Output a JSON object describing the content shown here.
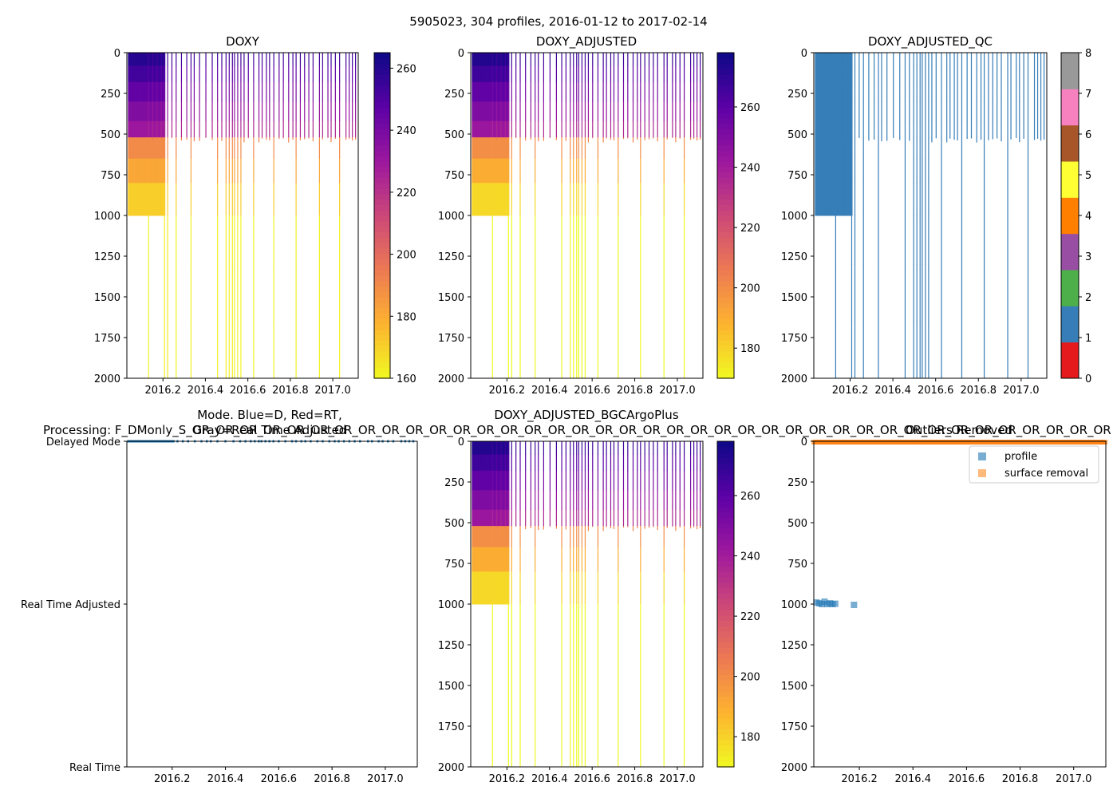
{
  "suptitle": "5905023, 304 profiles, 2016-01-12 to 2017-02-14",
  "colors": {
    "profile": "#1f77b4",
    "surface_removal": "#ff7f0e",
    "qc": [
      "#e41a1c",
      "#377eb8",
      "#4daf4a",
      "#984ea3",
      "#ff7f00",
      "#ffff33",
      "#a65628",
      "#f781bf",
      "#999999"
    ],
    "plasma": [
      "#f0f921",
      "#fdb42f",
      "#ed7953",
      "#cc4778",
      "#9c179e",
      "#5c01a6",
      "#0d0887"
    ]
  },
  "chart_data": [
    {
      "id": "doxy",
      "type": "heatmap",
      "title": "DOXY",
      "xlim": [
        2016.03,
        2017.12
      ],
      "xticks": [
        "2016.2",
        "2016.4",
        "2016.6",
        "2016.8",
        "2017.0"
      ],
      "xtick_values": [
        2016.2,
        2016.4,
        2016.6,
        2016.8,
        2017.0
      ],
      "ylim": [
        2000,
        0
      ],
      "yticks": [
        "0",
        "250",
        "500",
        "750",
        "1000",
        "1250",
        "1500",
        "1750",
        "2000"
      ],
      "ytick_values": [
        0,
        250,
        500,
        750,
        1000,
        1250,
        1500,
        1750,
        2000
      ],
      "colorbar": {
        "min": 160,
        "max": 265,
        "ticks": [
          "160",
          "180",
          "200",
          "220",
          "240",
          "260"
        ],
        "tick_values": [
          160,
          180,
          200,
          220,
          240,
          260
        ]
      },
      "value_range_shallow": [
        228,
        262
      ],
      "value_range_deep": [
        165,
        195
      ]
    },
    {
      "id": "doxy-adjusted",
      "type": "heatmap",
      "title": "DOXY_ADJUSTED",
      "xlim": [
        2016.03,
        2017.12
      ],
      "xticks": [
        "2016.2",
        "2016.4",
        "2016.6",
        "2016.8",
        "2017.0"
      ],
      "xtick_values": [
        2016.2,
        2016.4,
        2016.6,
        2016.8,
        2017.0
      ],
      "ylim": [
        2000,
        0
      ],
      "yticks": [
        "0",
        "250",
        "500",
        "750",
        "1000",
        "1250",
        "1500",
        "1750",
        "2000"
      ],
      "ytick_values": [
        0,
        250,
        500,
        750,
        1000,
        1250,
        1500,
        1750,
        2000
      ],
      "colorbar": {
        "min": 170,
        "max": 278,
        "ticks": [
          "180",
          "200",
          "220",
          "240",
          "260"
        ],
        "tick_values": [
          180,
          200,
          220,
          240,
          260
        ]
      },
      "value_range_shallow": [
        240,
        276
      ],
      "value_range_deep": [
        172,
        205
      ]
    },
    {
      "id": "doxy-adjusted-qc",
      "type": "heatmap",
      "title": "DOXY_ADJUSTED_QC",
      "xlim": [
        2016.03,
        2017.12
      ],
      "xticks": [
        "2016.2",
        "2016.4",
        "2016.6",
        "2016.8",
        "2017.0"
      ],
      "xtick_values": [
        2016.2,
        2016.4,
        2016.6,
        2016.8,
        2017.0
      ],
      "ylim": [
        2000,
        0
      ],
      "yticks": [
        "0",
        "250",
        "500",
        "750",
        "1000",
        "1250",
        "1500",
        "1750",
        "2000"
      ],
      "ytick_values": [
        0,
        250,
        500,
        750,
        1000,
        1250,
        1500,
        1750,
        2000
      ],
      "colorbar": {
        "min": 0,
        "max": 8,
        "ticks": [
          "0",
          "1",
          "2",
          "3",
          "4",
          "5",
          "6",
          "7",
          "8"
        ],
        "tick_values": [
          0,
          1,
          2,
          3,
          4,
          5,
          6,
          7,
          8
        ]
      },
      "qc_value": 1
    },
    {
      "id": "mode",
      "type": "scatter",
      "title_lines": [
        "Mode. Blue=D, Red=RT,",
        "Gray=Real Time Adjusted"
      ],
      "processing_label": "Processing: F_DMonly_S_OR_OR_OR_OR_OR_OR_OR_OR_OR_OR_OR_OR_OR_OR_OR_OR_OR_OR_OR_OR_OR_OR_OR_OR_OR_OR_OR_OR_OR_OR_OR_OR_OR_OR_OR_OR_OR_OR_OR",
      "xlim": [
        2016.03,
        2017.12
      ],
      "xticks": [
        "2016.2",
        "2016.4",
        "2016.6",
        "2016.8",
        "2017.0"
      ],
      "xtick_values": [
        2016.2,
        2016.4,
        2016.6,
        2016.8,
        2017.0
      ],
      "ycategories": [
        "Delayed Mode",
        "Real Time Adjusted",
        "Real Time"
      ],
      "ycategory_values": [
        2,
        1,
        0
      ],
      "points_mode": "Delayed Mode",
      "n_points": 304
    },
    {
      "id": "doxy-adjusted-bgcargoplus",
      "type": "heatmap",
      "title": "DOXY_ADJUSTED_BGCArgoPlus",
      "xlim": [
        2016.03,
        2017.12
      ],
      "xticks": [
        "2016.2",
        "2016.4",
        "2016.6",
        "2016.8",
        "2017.0"
      ],
      "xtick_values": [
        2016.2,
        2016.4,
        2016.6,
        2016.8,
        2017.0
      ],
      "ylim": [
        2000,
        0
      ],
      "yticks": [
        "0",
        "250",
        "500",
        "750",
        "1000",
        "1250",
        "1500",
        "1750",
        "2000"
      ],
      "ytick_values": [
        0,
        250,
        500,
        750,
        1000,
        1250,
        1500,
        1750,
        2000
      ],
      "colorbar": {
        "min": 170,
        "max": 278,
        "ticks": [
          "180",
          "200",
          "220",
          "240",
          "260"
        ],
        "tick_values": [
          180,
          200,
          220,
          240,
          260
        ]
      },
      "value_range_shallow": [
        240,
        276
      ],
      "value_range_deep": [
        172,
        205
      ]
    },
    {
      "id": "outliers",
      "type": "scatter",
      "title": "Outliers Removed",
      "xlim": [
        2016.03,
        2017.12
      ],
      "xticks": [
        "2016.2",
        "2016.4",
        "2016.6",
        "2016.8",
        "2017.0"
      ],
      "xtick_values": [
        2016.2,
        2016.4,
        2016.6,
        2016.8,
        2017.0
      ],
      "ylim": [
        2000,
        0
      ],
      "yticks": [
        "0",
        "250",
        "500",
        "750",
        "1000",
        "1250",
        "1500",
        "1750",
        "2000"
      ],
      "ytick_values": [
        0,
        250,
        500,
        750,
        1000,
        1250,
        1500,
        1750,
        2000
      ],
      "legend": [
        "profile",
        "surface removal"
      ],
      "legend_position": "top-right",
      "series": [
        {
          "name": "profile",
          "points": [
            [
              2016.04,
              990
            ],
            [
              2016.05,
              995
            ],
            [
              2016.06,
              1000
            ],
            [
              2016.07,
              985
            ],
            [
              2016.08,
              1000
            ],
            [
              2016.09,
              995
            ],
            [
              2016.1,
              1000
            ],
            [
              2016.11,
              998
            ],
            [
              2016.18,
              1005
            ]
          ]
        },
        {
          "name": "surface removal",
          "depth": 5,
          "xrange": [
            2016.03,
            2017.12
          ]
        }
      ]
    }
  ]
}
